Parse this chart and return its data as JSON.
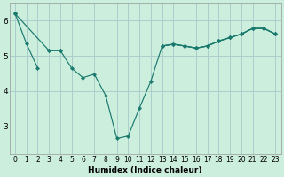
{
  "xlabel": "Humidex (Indice chaleur)",
  "background_color": "#cceedd",
  "grid_color": "#aacccc",
  "line_color": "#1a7a6e",
  "x": [
    0,
    1,
    2,
    3,
    4,
    5,
    6,
    7,
    8,
    9,
    10,
    11,
    12,
    13,
    14,
    15,
    16,
    17,
    18,
    19,
    20,
    21,
    22,
    23
  ],
  "line1": [
    6.2,
    5.35,
    4.65,
    null,
    null,
    null,
    null,
    null,
    null,
    null,
    null,
    null,
    null,
    5.28,
    5.33,
    5.28,
    5.22,
    5.28,
    5.42,
    5.52,
    5.62,
    5.78,
    5.78,
    5.62
  ],
  "line2": [
    6.2,
    null,
    null,
    5.15,
    5.15,
    4.65,
    4.38,
    4.48,
    3.88,
    2.65,
    2.72,
    3.52,
    4.28,
    5.28,
    5.33,
    5.28,
    5.22,
    5.28,
    5.42,
    5.52,
    5.62,
    5.78,
    5.78,
    5.62
  ],
  "line3": [
    6.2,
    null,
    null,
    null,
    null,
    null,
    null,
    null,
    null,
    null,
    null,
    null,
    null,
    5.28,
    5.33,
    5.28,
    5.22,
    5.28,
    5.42,
    5.52,
    5.62,
    5.78,
    5.78,
    5.62
  ],
  "line3_start": [
    6.2,
    null,
    null,
    5.15,
    5.15,
    null,
    null,
    null,
    null,
    null,
    null,
    null,
    null,
    null,
    null,
    null,
    null,
    null,
    null,
    null,
    null,
    null,
    null,
    null
  ],
  "ylim": [
    2.2,
    6.5
  ],
  "yticks": [
    3,
    4,
    5,
    6
  ],
  "xticks": [
    0,
    1,
    2,
    3,
    4,
    5,
    6,
    7,
    8,
    9,
    10,
    11,
    12,
    13,
    14,
    15,
    16,
    17,
    18,
    19,
    20,
    21,
    22,
    23
  ],
  "tick_fontsize": 5.5,
  "xlabel_fontsize": 6.5,
  "linewidth": 0.85,
  "markersize": 2.2
}
